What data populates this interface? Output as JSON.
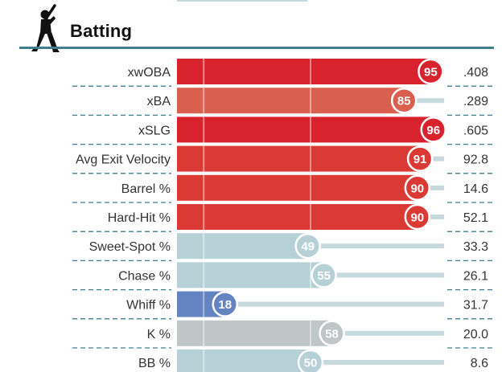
{
  "header": {
    "title": "Batting",
    "icon": "batter-silhouette-icon"
  },
  "colors": {
    "accent_line": "#3f7f8c",
    "track": "#c6dadd"
  },
  "chart_data": {
    "type": "bar",
    "orientation": "horizontal",
    "title": "Batting",
    "xlim": [
      0,
      100
    ],
    "metrics": [
      {
        "label": "xwOBA",
        "percentile": 95,
        "value": ".408",
        "color": "#d8232f"
      },
      {
        "label": "xBA",
        "percentile": 85,
        "value": ".289",
        "color": "#d9604f"
      },
      {
        "label": "xSLG",
        "percentile": 96,
        "value": ".605",
        "color": "#d8232f"
      },
      {
        "label": "Avg Exit Velocity",
        "percentile": 91,
        "value": "92.8",
        "color": "#db3a34"
      },
      {
        "label": "Barrel %",
        "percentile": 90,
        "value": "14.6",
        "color": "#db3a34"
      },
      {
        "label": "Hard-Hit %",
        "percentile": 90,
        "value": "52.1",
        "color": "#db3a34"
      },
      {
        "label": "Sweet-Spot %",
        "percentile": 49,
        "value": "33.3",
        "color": "#b6d1d5"
      },
      {
        "label": "Chase %",
        "percentile": 55,
        "value": "26.1",
        "color": "#b6d1d5"
      },
      {
        "label": "Whiff %",
        "percentile": 18,
        "value": "31.7",
        "color": "#6384c1"
      },
      {
        "label": "K %",
        "percentile": 58,
        "value": "20.0",
        "color": "#bfc6c6"
      },
      {
        "label": "BB %",
        "percentile": 50,
        "value": "8.6",
        "color": "#b6d1d5"
      }
    ]
  }
}
